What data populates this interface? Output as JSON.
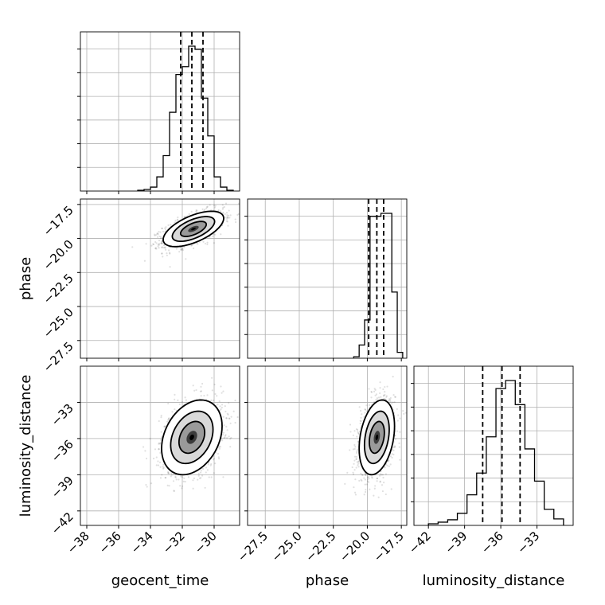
{
  "chart_data": {
    "type": "corner",
    "parameters": [
      "geocent_time",
      "phase",
      "luminosity_distance"
    ],
    "grid": true,
    "axes": {
      "geocent_time": {
        "range": [
          -38.4,
          -28.4
        ],
        "ticks": [
          -38,
          -36,
          -34,
          -32,
          -30
        ],
        "tick_labels": [
          "−38",
          "−36",
          "−34",
          "−32",
          "−30"
        ]
      },
      "phase": {
        "range": [
          -28.8,
          -17.1
        ],
        "ticks": [
          -27.5,
          -25.0,
          -22.5,
          -20.0,
          -17.5
        ],
        "tick_labels": [
          "−27.5",
          "−25.0",
          "−22.5",
          "−20.0",
          "−17.5"
        ]
      },
      "luminosity_distance": {
        "range": [
          -43.2,
          -30.0
        ],
        "ticks": [
          -42,
          -39,
          -36,
          -33
        ],
        "tick_labels": [
          "−42",
          "−39",
          "−36",
          "−33"
        ]
      }
    },
    "histograms": [
      {
        "param": "geocent_time",
        "bin_edges": [
          -34.8,
          -34.4,
          -34.0,
          -33.6,
          -33.2,
          -32.8,
          -32.4,
          -32.0,
          -31.6,
          -31.2,
          -30.8,
          -30.4,
          -30.0,
          -29.6,
          -29.2,
          -28.8
        ],
        "counts": [
          1,
          2,
          5,
          18,
          45,
          100,
          148,
          158,
          184,
          180,
          118,
          70,
          18,
          5,
          1
        ],
        "quantiles": [
          -32.1,
          -31.4,
          -30.7
        ]
      },
      {
        "param": "phase",
        "bin_edges": [
          -21.0,
          -20.6,
          -20.2,
          -19.8,
          -19.4,
          -19.0,
          -18.6,
          -18.2,
          -17.8,
          -17.4
        ],
        "counts": [
          2,
          18,
          52,
          193,
          193,
          197,
          197,
          90,
          8
        ],
        "quantiles": [
          -19.9,
          -19.3,
          -18.8
        ]
      },
      {
        "param": "luminosity_distance",
        "bin_edges": [
          -42.0,
          -41.2,
          -40.4,
          -39.6,
          -38.8,
          -38.0,
          -37.2,
          -36.4,
          -35.6,
          -34.8,
          -34.0,
          -33.2,
          -32.4,
          -31.6,
          -30.8
        ],
        "counts": [
          2,
          4,
          7,
          15,
          38,
          65,
          110,
          170,
          180,
          150,
          95,
          55,
          20,
          8
        ],
        "quantiles": [
          -37.5,
          -35.9,
          -34.4
        ]
      }
    ],
    "scatter": [
      {
        "x": "geocent_time",
        "y": "phase",
        "center": [
          -31.3,
          -19.3
        ],
        "sd": [
          0.95,
          0.65
        ],
        "corr": 0.6
      },
      {
        "x": "geocent_time",
        "y": "luminosity_distance",
        "center": [
          -31.4,
          -35.9
        ],
        "sd": [
          0.95,
          1.55
        ],
        "corr": 0.3
      },
      {
        "x": "phase",
        "y": "luminosity_distance",
        "center": [
          -19.3,
          -35.9
        ],
        "sd": [
          0.65,
          1.55
        ],
        "corr": 0.3
      }
    ]
  }
}
